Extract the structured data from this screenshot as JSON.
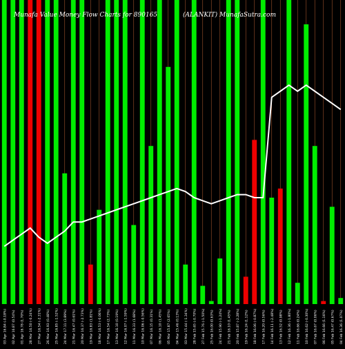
{
  "chart_data": {
    "type": "bar",
    "title": "Munafa Value Money Flow  Charts for 890165",
    "subtitle": "(ALANKIT) MunafaSutra.com",
    "categories": [
      "Thu 03 Apr 2025",
      "Wed 02 Apr 2025",
      "Tue 01 Apr 2025",
      "Fri 28 Mar 2025",
      "Thu 27 Mar 2025",
      "Wed 26 Mar 2025",
      "Tue 25 Mar 2025",
      "Mon 24 Mar 2025",
      "Fri 21 Mar 2025",
      "Thu 20 Mar 2025",
      "Wed 19 Mar 2025",
      "Tue 18 Mar 2025",
      "Mon 17 Mar 2025",
      "Thu 13 Mar 2025",
      "Wed 12 Mar 2025",
      "Tue 11 Mar 2025",
      "Mon 10 Mar 2025",
      "Fri 07 Mar 2025",
      "Thu 06 Mar 2025",
      "Wed 05 Mar 2025",
      "Tue 04 Mar 2025",
      "Mon 03 Mar 2025",
      "Fri 28 Feb 2025",
      "Thu 27 Feb 2025",
      "Tue 25 Feb 2025",
      "Mon 24 Feb 2025",
      "Fri 21 Feb 2025",
      "Thu 20 Feb 2025",
      "Wed 19 Feb 2025",
      "Tue 18 Feb 2025",
      "Mon 17 Feb 2025",
      "Fri 14 Feb 2025",
      "Thu 13 Feb 2025",
      "Wed 12 Feb 2025",
      "Tue 11 Feb 2025",
      "Mon 10 Feb 2025",
      "Fri 07 Feb 2025",
      "Thu 06 Feb 2025",
      "Wed 05 Feb 2025",
      "Tue 04 Feb 2025"
    ],
    "tick_labels": [
      "03 Apr 16.84 (-0.18%)",
      "02 Apr 16.87 (0.54%)",
      "01 Apr 16.78 (1.70%)",
      "28 Mar 16.50 (-0.24%)",
      "27 Mar 16.54 (-2.31%)",
      "26 Mar 16.93 (0.48%)",
      "25 Mar 16.85 (-1.52%)",
      "24 Mar 17.11 (3.89%)",
      "21 Mar 16.47 (0.61%)",
      "20 Mar 16.37 (-2.73%)",
      "19 Mar 16.83 (1.81%)",
      "18 Mar 16.53 (-0.06%)",
      "17 Mar 16.54 (2.73%)",
      "13 Mar 16.10 (0.19%)",
      "12 Mar 16.07 (-1.59%)",
      "11 Mar 16.33 (1.68%)",
      "10 Mar 16.06 (-0.56%)",
      "07 Mar 16.15 (0.31%)",
      "06 Mar 16.10 (1.45%)",
      "05 Mar 15.87 (2.65%)",
      "04 Mar 15.46 (0.13%)",
      "03 Mar 15.44 (-1.34%)",
      "28 Feb 15.65 (-0.70%)",
      "27 Feb 15.76 (-1.50%)",
      "25 Feb 16.00 (0.63%)",
      "24 Feb 15.90 (-1.24%)",
      "21 Feb 16.10 (1.45%)",
      "20 Feb 15.87 (-2.28%)",
      "19 Feb 16.24 (1.12%)",
      "18 Feb 16.06 (-0.87%)",
      "17 Feb 16.20 (0.56%)",
      "14 Feb 16.11 (-2.48%)",
      "13 Feb 16.52 (0.98%)",
      "12 Feb 16.36 (-1.80%)",
      "11 Feb 16.66 (0.24%)",
      "10 Feb 16.62 (-0.30%)",
      "07 Feb 16.67 (0.06%)",
      "06 Feb 16.66 (1.16%)",
      "05 Feb 16.47 (0.67%)",
      "04 Feb 16.36 (1.07%)"
    ],
    "bar_series": {
      "values": [
        100,
        100,
        100,
        100,
        100,
        100,
        100,
        43,
        100,
        100,
        13,
        31,
        100,
        100,
        100,
        26,
        100,
        52,
        100,
        78,
        100,
        13,
        100,
        6,
        1,
        15,
        100,
        100,
        9,
        54,
        100,
        35,
        38,
        100,
        7,
        92,
        52,
        1,
        32,
        2
      ],
      "colors": [
        "#00ee00",
        "#00ee00",
        "#00ee00",
        "#ee0000",
        "#ee0000",
        "#00ee00",
        "#00ee00",
        "#00ee00",
        "#00ee00",
        "#00ee00",
        "#ee0000",
        "#00ee00",
        "#00ee00",
        "#00ee00",
        "#00ee00",
        "#00ee00",
        "#00ee00",
        "#00ee00",
        "#00ee00",
        "#00ee00",
        "#00ee00",
        "#00ee00",
        "#00ee00",
        "#00ee00",
        "#00ee00",
        "#00ee00",
        "#00ee00",
        "#00ee00",
        "#ee0000",
        "#ee0000",
        "#00ee00",
        "#00ee00",
        "#ee0000",
        "#00ee00",
        "#00ee00",
        "#00ee00",
        "#00ee00",
        "#ee0000",
        "#00ee00",
        "#00ee00"
      ]
    },
    "line_series": {
      "values": [
        19,
        21,
        23,
        25,
        22,
        20,
        22,
        24,
        27,
        27,
        28,
        29,
        30,
        31,
        32,
        33,
        34,
        35,
        36,
        37,
        38,
        37,
        35,
        34,
        33,
        34,
        35,
        36,
        36,
        35,
        35,
        68,
        70,
        72,
        70,
        72,
        70,
        68,
        66,
        64
      ]
    },
    "ylim": [
      0,
      100
    ],
    "grid": true,
    "colors": {
      "background": "#000000",
      "up_bar": "#00ee00",
      "down_bar": "#ee0000",
      "line": "#ffffff",
      "grid": "#a0522d",
      "text": "#ffffff"
    }
  }
}
